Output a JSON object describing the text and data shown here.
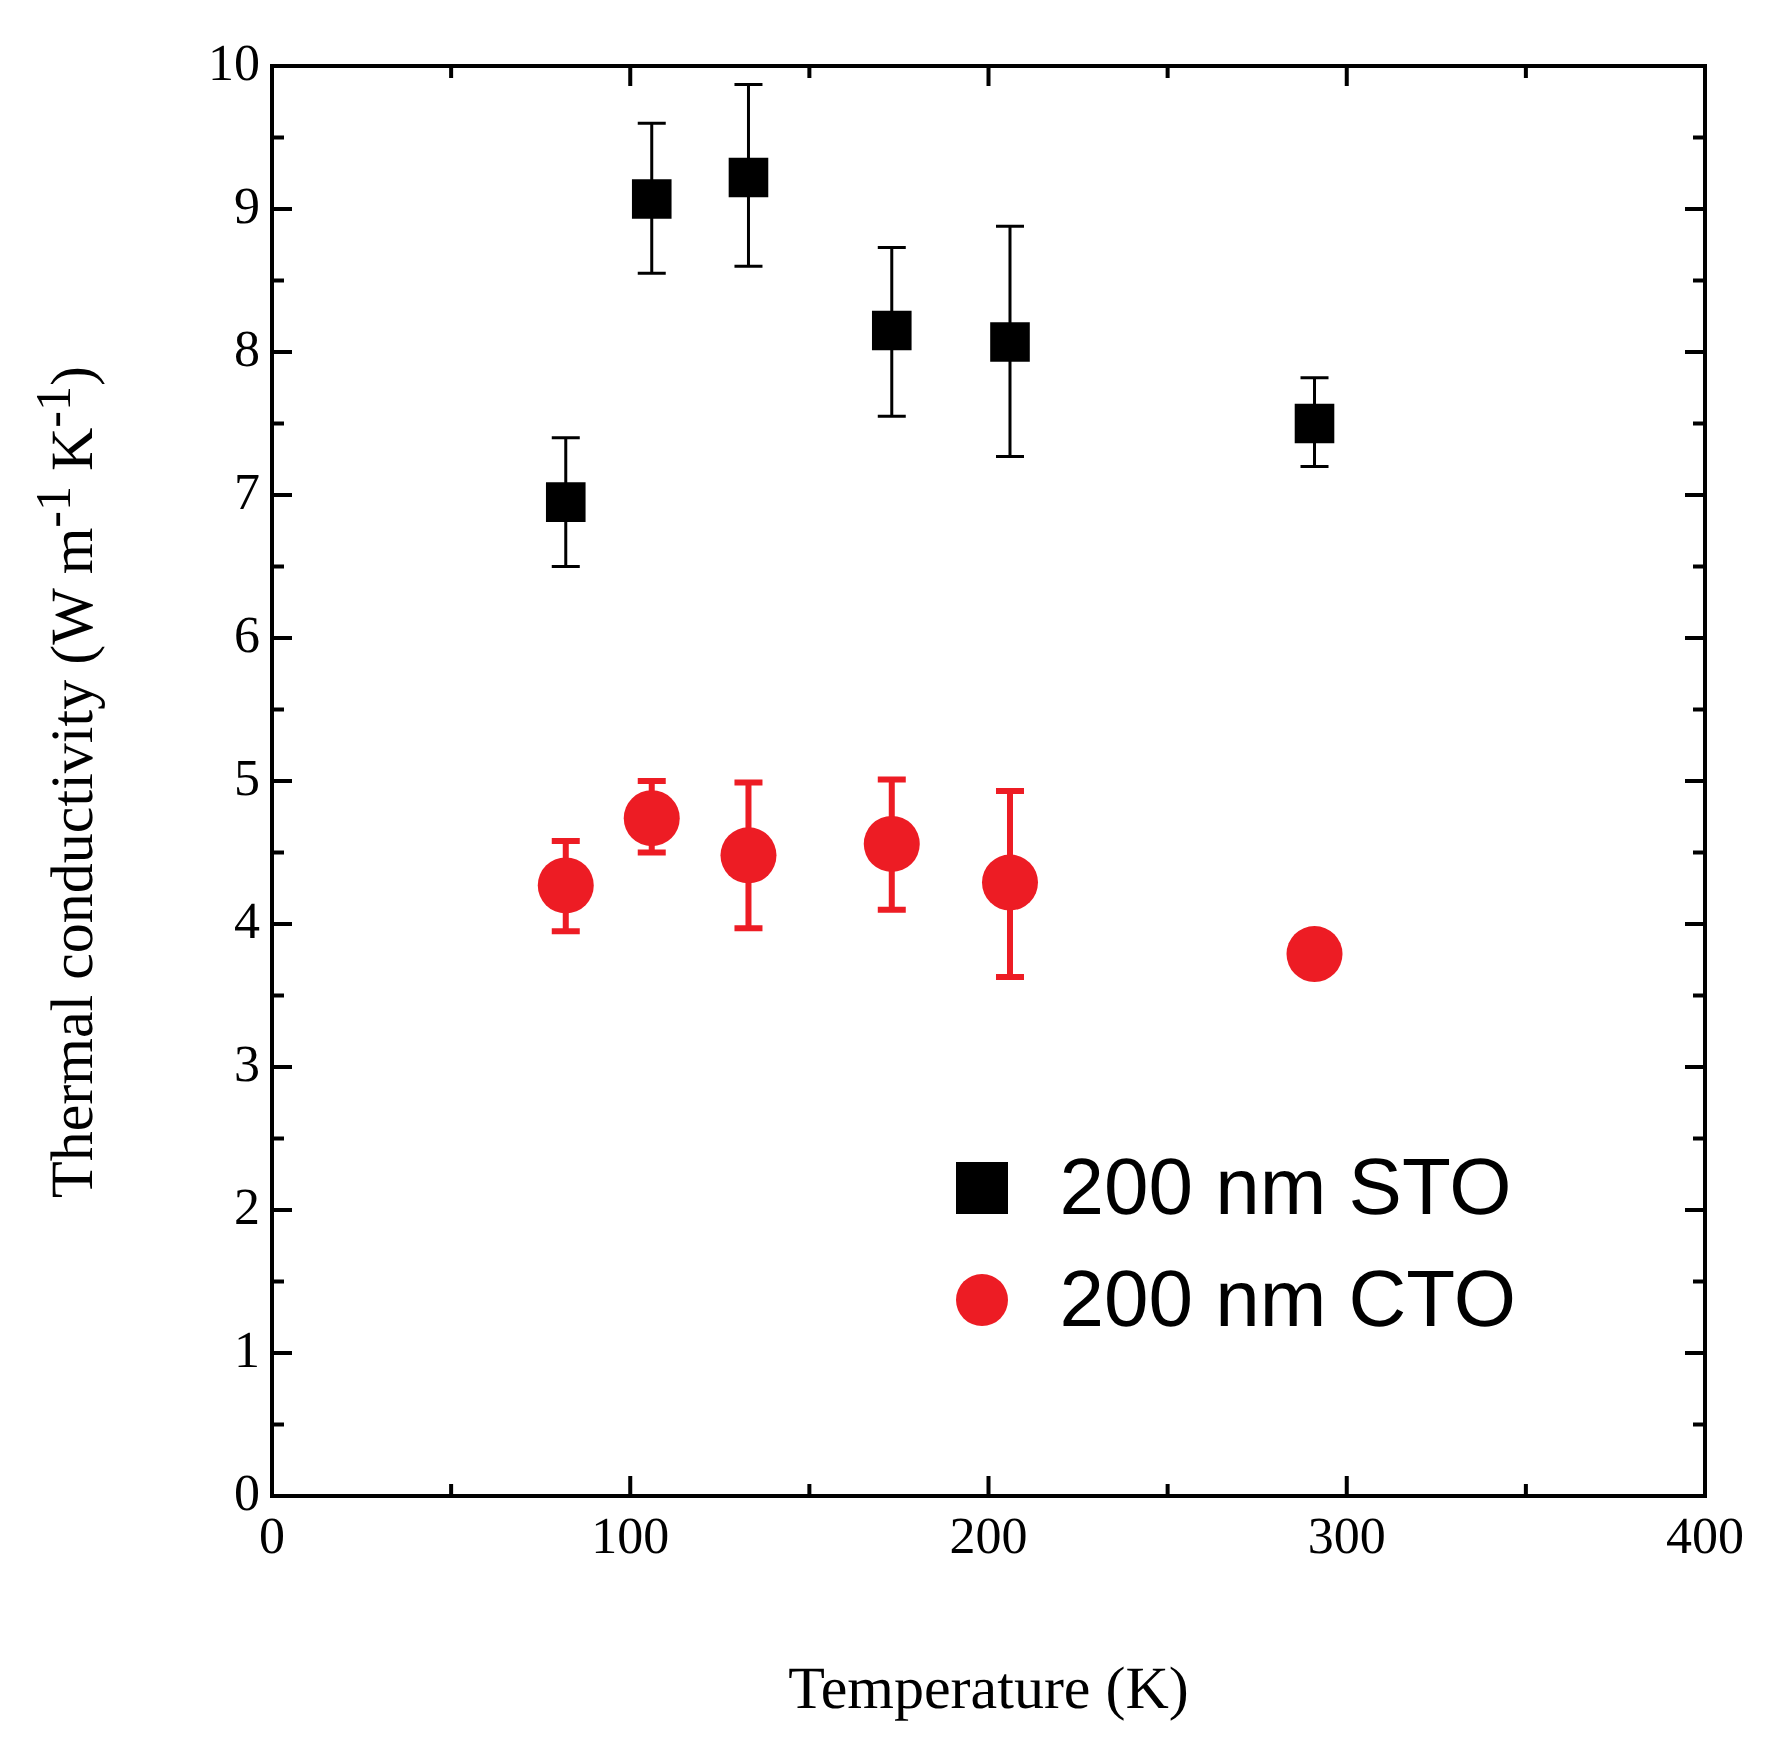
{
  "chart_data": {
    "type": "scatter",
    "xlabel": "Temperature (K)",
    "ylabel": "Thermal conductivity (W m$^{-1}$ K$^{-1}$)",
    "xlim": [
      0,
      400
    ],
    "xticks": [
      0,
      100,
      200,
      300,
      400
    ],
    "ylim": [
      0,
      10
    ],
    "yticks": [
      0,
      1,
      2,
      3,
      4,
      5,
      6,
      7,
      8,
      9,
      10
    ],
    "grid": false,
    "legend": "bottom right",
    "series": [
      {
        "name": "200 nm STO",
        "color": "#000000",
        "marker": "square",
        "x": [
          82,
          106,
          133,
          173,
          206,
          291
        ],
        "values": [
          6.95,
          9.07,
          9.22,
          8.15,
          8.07,
          7.5
        ],
        "errors": [
          [
            6.5,
            7.4
          ],
          [
            8.55,
            9.6
          ],
          [
            8.6,
            9.87
          ],
          [
            7.55,
            8.73
          ],
          [
            7.27,
            8.88
          ],
          [
            7.2,
            7.82
          ]
        ]
      },
      {
        "name": "200 nm CTO",
        "color": "#ed1c24",
        "marker": "circle",
        "x": [
          82,
          106,
          133,
          173,
          206,
          291
        ],
        "values": [
          4.27,
          4.74,
          4.48,
          4.56,
          4.29,
          3.79
        ],
        "errors": [
          [
            3.95,
            4.58
          ],
          [
            4.5,
            5.0
          ],
          [
            3.97,
            4.99
          ],
          [
            4.1,
            5.01
          ],
          [
            3.63,
            4.93
          ],
          null
        ]
      }
    ]
  }
}
